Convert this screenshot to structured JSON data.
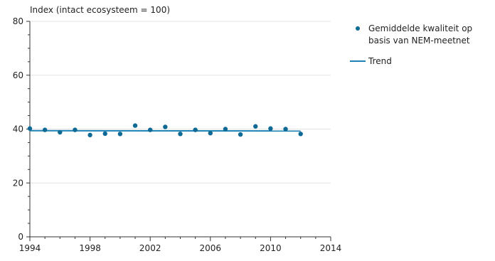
{
  "colors": {
    "point": "#0e6a94",
    "trend": "#1e82b4",
    "axis": "#333333",
    "grid": "#e3e3e3"
  },
  "chart_data": {
    "type": "scatter",
    "ylabel": "Index (intact ecosysteem = 100)",
    "xlim": [
      1994,
      2014
    ],
    "ylim": [
      0,
      80
    ],
    "x_ticks": [
      1994,
      1998,
      2002,
      2006,
      2010,
      2014
    ],
    "y_ticks": [
      0,
      20,
      40,
      60,
      80
    ],
    "grid": "horizontal",
    "legend_position": "top-right",
    "series": [
      {
        "name": "Gemiddelde kwaliteit op\nbasis van NEM-meetnet",
        "kind": "points",
        "x": [
          1994,
          1995,
          1996,
          1997,
          1998,
          1999,
          2000,
          2001,
          2002,
          2003,
          2004,
          2005,
          2006,
          2007,
          2008,
          2009,
          2010,
          2011,
          2012
        ],
        "y": [
          40.2,
          39.7,
          38.8,
          39.7,
          37.8,
          38.3,
          38.2,
          41.3,
          39.7,
          40.8,
          38.2,
          39.7,
          38.5,
          40.0,
          38.0,
          41.0,
          40.2,
          40.0,
          38.2
        ]
      },
      {
        "name": "Trend",
        "kind": "line",
        "x": [
          1994,
          2012
        ],
        "y": [
          39.4,
          39.3
        ]
      }
    ]
  }
}
